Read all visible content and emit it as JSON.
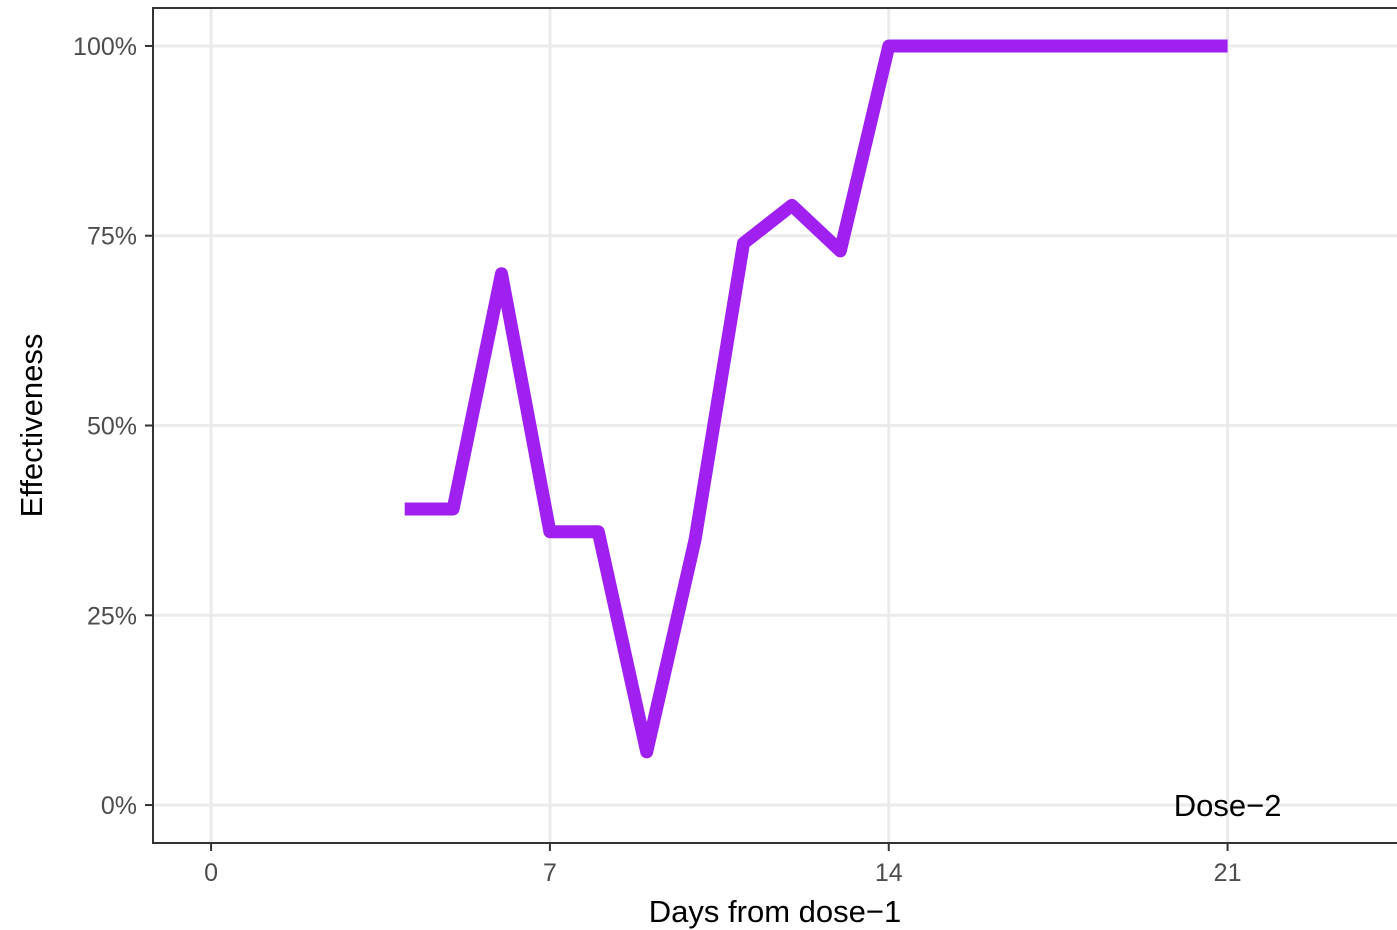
{
  "chart_data": {
    "type": "line",
    "xlabel": "Days from dose−1",
    "ylabel": "Effectiveness",
    "xlim": [
      -1.2,
      24.5
    ],
    "ylim": [
      -0.05,
      1.05
    ],
    "x_ticks": [
      0,
      7,
      14,
      21
    ],
    "x_tick_labels": [
      "0",
      "7",
      "14",
      "21"
    ],
    "y_ticks": [
      0,
      0.25,
      0.5,
      0.75,
      1.0
    ],
    "y_tick_labels": [
      "0%",
      "25%",
      "50%",
      "75%",
      "100%"
    ],
    "grid": true,
    "annotation": {
      "text": "Dose−2",
      "x": 21,
      "y": 0
    },
    "series": [
      {
        "color": "#A020F0",
        "x": [
          4,
          5,
          6,
          7,
          8,
          9,
          10,
          11,
          12,
          13,
          14,
          15,
          16,
          17,
          18,
          19,
          20,
          21
        ],
        "y": [
          0.39,
          0.39,
          0.7,
          0.36,
          0.36,
          0.07,
          0.35,
          0.74,
          0.79,
          0.73,
          1.0,
          1.0,
          1.0,
          1.0,
          1.0,
          1.0,
          1.0,
          1.0
        ]
      }
    ]
  }
}
